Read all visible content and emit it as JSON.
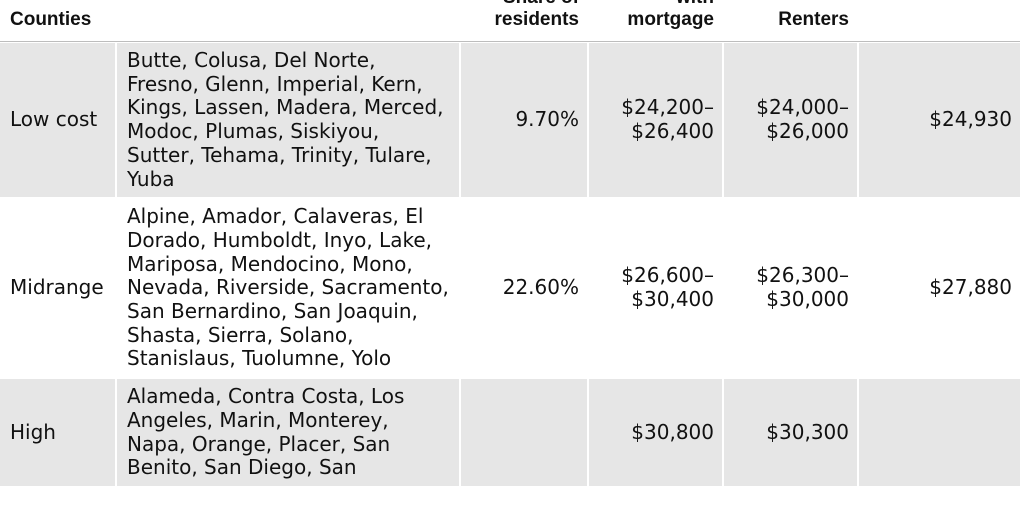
{
  "headers": {
    "tier": "Counties",
    "counties": "",
    "share": [
      "Share of",
      "residents"
    ],
    "mortgage": [
      "with",
      "mortgage"
    ],
    "renters": "Renters",
    "last": ""
  },
  "rows": [
    {
      "tier": "Low cost",
      "counties": "Butte, Colusa, Del Norte, Fresno, Glenn, Imperial, Kern, Kings, Lassen, Madera, Merced, Modoc, Plumas, Siskiyou, Sutter, Tehama, Trinity, Tulare, Yuba",
      "share": "9.70%",
      "mortgage": [
        "$24,200–",
        "$26,400"
      ],
      "renters": [
        "$24,000–",
        "$26,000"
      ],
      "last": "$24,930"
    },
    {
      "tier": "Midrange",
      "counties": "Alpine, Amador, Calaveras, El Dorado, Humboldt, Inyo, Lake, Mariposa, Mendocino, Mono, Nevada, Riverside, Sacramento, San Bernardino, San Joaquin, Shasta, Sierra, Solano, Stanislaus, Tuolumne, Yolo",
      "share": "22.60%",
      "mortgage": [
        "$26,600–",
        "$30,400"
      ],
      "renters": [
        "$26,300–",
        "$30,000"
      ],
      "last": "$27,880"
    },
    {
      "tier": "High",
      "counties": "Alameda, Contra Costa, Los Angeles, Marin, Monterey, Napa, Orange, Placer, San Benito, San Diego, San",
      "share": "",
      "mortgage": [
        "$30,800",
        ""
      ],
      "renters": [
        "$30,300",
        ""
      ],
      "last": ""
    }
  ]
}
